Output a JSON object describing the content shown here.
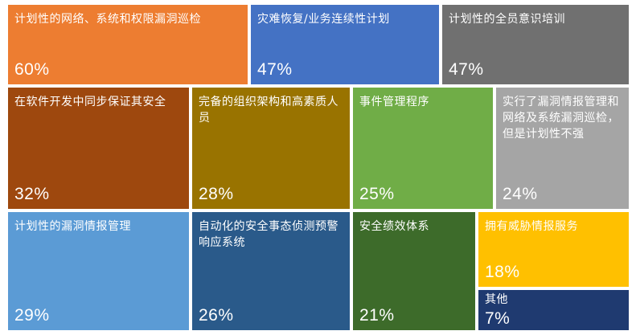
{
  "chart_data": {
    "type": "treemap",
    "items": [
      {
        "label": "计划性的网络、系统和权限漏洞巡检",
        "value": 60,
        "display": "60%",
        "color": "#ED7D31"
      },
      {
        "label": "灾难恢复/业务连续性计划",
        "value": 47,
        "display": "47%",
        "color": "#4472C4"
      },
      {
        "label": "计划性的全员意识培训",
        "value": 47,
        "display": "47%",
        "color": "#707070"
      },
      {
        "label": "在软件开发中同步保证其安全",
        "value": 32,
        "display": "32%",
        "color": "#9E480E"
      },
      {
        "label": "完备的组织架构和高素质人员",
        "value": 28,
        "display": "28%",
        "color": "#997300"
      },
      {
        "label": "事件管理程序",
        "value": 25,
        "display": "25%",
        "color": "#70AD47"
      },
      {
        "label": "实行了漏洞情报管理和网络及系统漏洞巡检，但是计划性不强",
        "value": 24,
        "display": "24%",
        "color": "#A5A5A5"
      },
      {
        "label": "计划性的漏洞情报管理",
        "value": 29,
        "display": "29%",
        "color": "#5B9BD5"
      },
      {
        "label": "自动化的安全事态侦测预警响应系统",
        "value": 26,
        "display": "26%",
        "color": "#2A5A8A"
      },
      {
        "label": "安全绩效体系",
        "value": 21,
        "display": "21%",
        "color": "#3D6B2A"
      },
      {
        "label": "拥有威胁情报服务",
        "value": 18,
        "display": "18%",
        "color": "#FFC000"
      },
      {
        "label": "其他",
        "value": 7,
        "display": "7%",
        "color": "#1F3A70"
      }
    ]
  }
}
